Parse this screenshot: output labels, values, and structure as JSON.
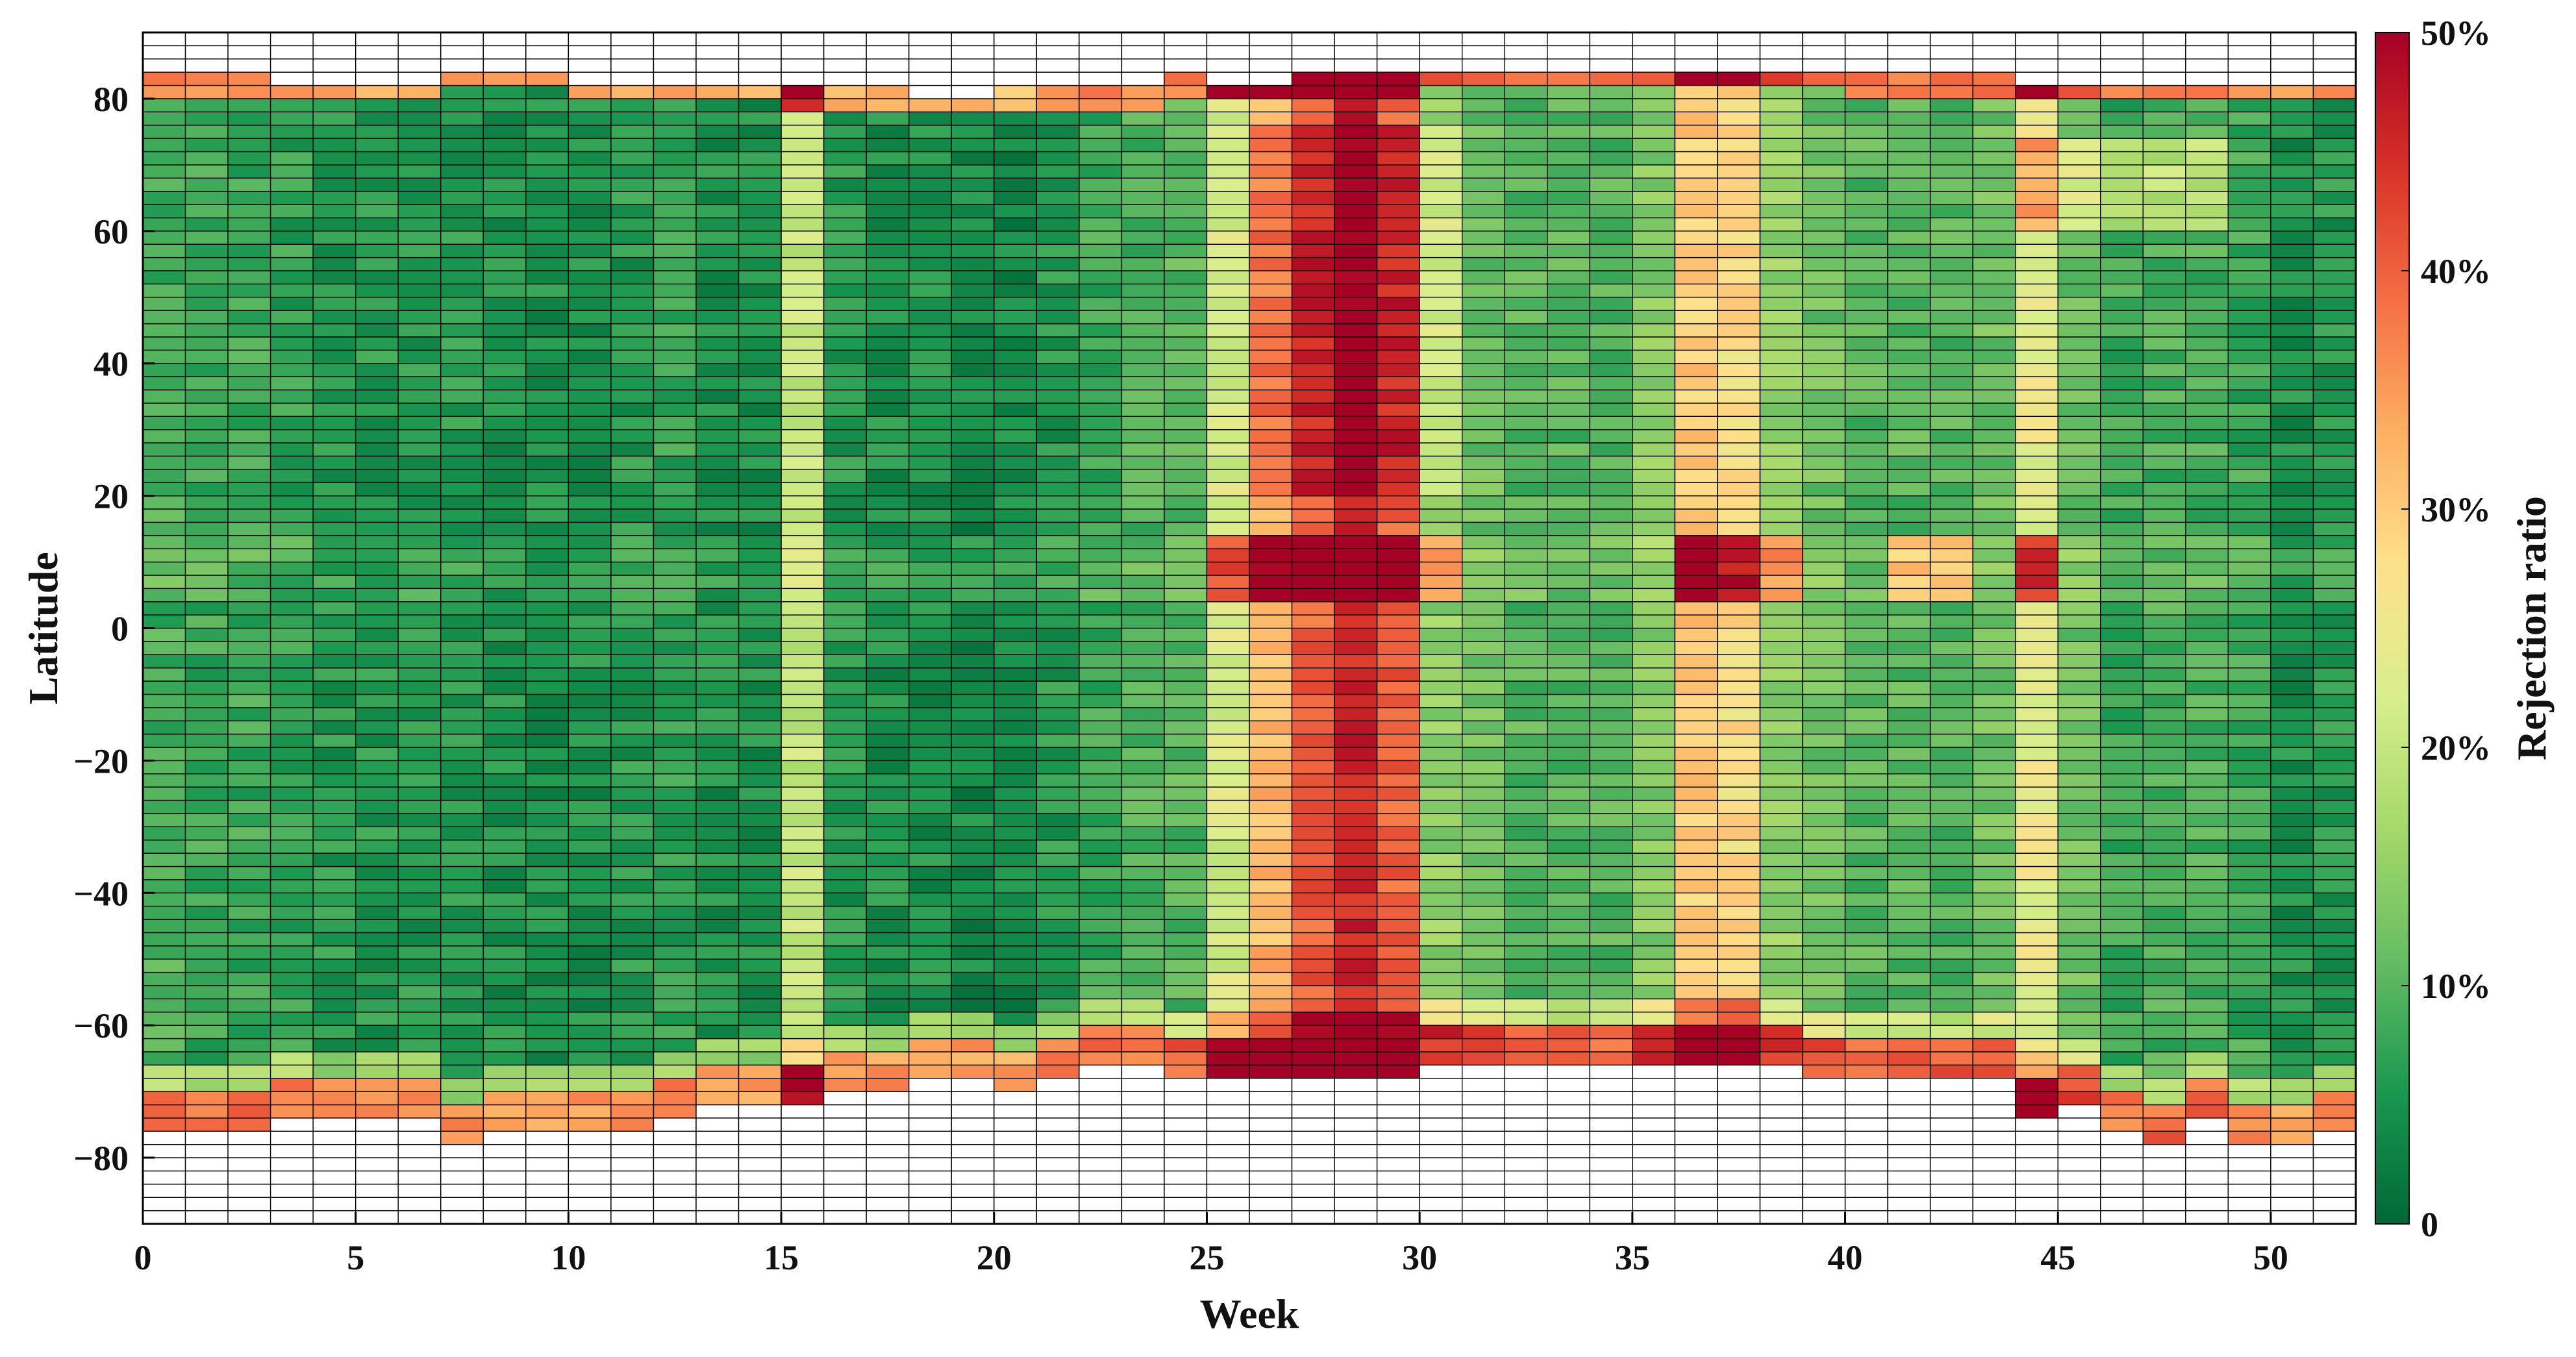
{
  "chart_data": {
    "type": "heatmap",
    "title": "",
    "xlabel": "Week",
    "ylabel": "Latitude",
    "colorbar_label": "Rejection ratio",
    "xlim": [
      0,
      52
    ],
    "ylim": [
      -90,
      90
    ],
    "x_ticks": [
      0,
      5,
      10,
      15,
      20,
      25,
      30,
      35,
      40,
      45,
      50
    ],
    "y_ticks": [
      80,
      60,
      40,
      20,
      0,
      -20,
      -40,
      -60,
      -80
    ],
    "y_tick_labels": [
      "80",
      "60",
      "40",
      "20",
      "0",
      "−20",
      "−40",
      "−60",
      "−80"
    ],
    "colorbar_ticks": [
      0,
      10,
      20,
      30,
      40,
      50
    ],
    "colorbar_tick_labels": [
      "0",
      "10%",
      "20%",
      "30%",
      "40%",
      "50%"
    ],
    "color_range": [
      0,
      50
    ],
    "color_stops": [
      "#006837",
      "#1a9850",
      "#66bd63",
      "#a6d96a",
      "#d9ef8b",
      "#fee08b",
      "#fdae61",
      "#f46d43",
      "#d73027",
      "#a50026"
    ],
    "missing_color": "#ffffff",
    "cell_weeks": 52,
    "lat_bin_deg": 2,
    "weekly_base_ratio": [
      9,
      8,
      8,
      7,
      6,
      6,
      6,
      6,
      5,
      5,
      5,
      6,
      7,
      5,
      5,
      20,
      6,
      5,
      5,
      4,
      4,
      6,
      8,
      9,
      10,
      22,
      32,
      40,
      46,
      40,
      15,
      12,
      10,
      10,
      10,
      14,
      30,
      28,
      15,
      12,
      10,
      10,
      10,
      12,
      24,
      12,
      8,
      9,
      9,
      8,
      5,
      6
    ],
    "equator_boost_weeks": [
      25,
      26,
      27,
      28,
      29,
      30,
      36,
      37,
      38,
      41,
      42,
      44
    ],
    "coverage_south_edge_deg": [
      -77,
      -77,
      -77,
      -75,
      -75,
      -75,
      -75,
      -78,
      -77,
      -77,
      -77,
      -76,
      -74,
      -73,
      -72,
      -72,
      -71,
      -70,
      -69,
      -69,
      -70,
      -68,
      -67,
      -67,
      -69,
      -68,
      -68,
      -69,
      -68,
      -68,
      -67,
      -66,
      -66,
      -67,
      -67,
      -67,
      -67,
      -67,
      -67,
      -68,
      -68,
      -68,
      -68,
      -68,
      -75,
      -72,
      -77,
      -78,
      -75,
      -78,
      -78,
      -77
    ],
    "coverage_north_edge_deg": [
      83,
      83,
      83,
      82,
      82,
      82,
      82,
      84,
      84,
      84,
      82,
      82,
      82,
      82,
      82,
      81,
      81,
      81,
      80,
      80,
      81,
      81,
      81,
      81,
      83,
      82,
      82,
      83,
      83,
      83,
      84,
      84,
      84,
      84,
      84,
      84,
      84,
      84,
      84,
      84,
      83,
      83,
      83,
      83,
      82,
      82,
      82,
      82,
      82,
      82,
      82,
      82
    ]
  }
}
